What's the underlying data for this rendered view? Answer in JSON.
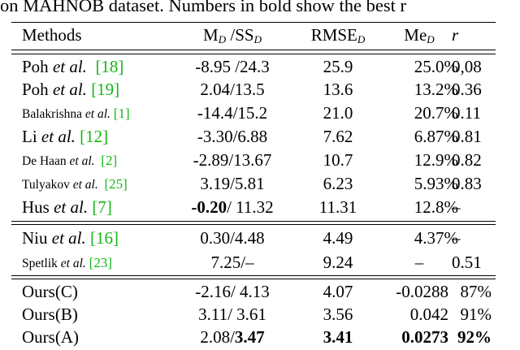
{
  "caption": "on MAHNOB dataset. Numbers in bold show the best r",
  "header": {
    "methods": "Methods",
    "m_sd": "M",
    "m_sd_sub": "D",
    "m_sd_sep": " /SS",
    "m_sd_sub2": "D",
    "rmse": "RMSE",
    "rmse_sub": "D",
    "me": "Me",
    "me_sub": "D",
    "r": "r"
  },
  "rows": [
    {
      "pre": "Poh ",
      "etal": "et al.",
      "ref": "[18]",
      "m": "-8.95 /24.3",
      "rmse": "25.9",
      "me": "25.0%",
      "r": "0,08"
    },
    {
      "pre": "Poh ",
      "etal": "et al.",
      "ref": "[19]",
      "m": "2.04/13.5",
      "rmse": "13.6",
      "me": "13.2%",
      "r": "0.36"
    },
    {
      "pre": "Balakrishna ",
      "etal": "et al.",
      "ref": "[1]",
      "m": "-14.4/15.2",
      "rmse": "21.0",
      "me": "20.7%",
      "r": "0.11"
    },
    {
      "pre": "Li ",
      "etal": "et al.",
      "ref": "[12]",
      "m": "-3.30/6.88",
      "rmse": "7.62",
      "me": "6.87%",
      "r": "0.81"
    },
    {
      "pre": "De Haan ",
      "etal": "et al.",
      "ref": "[2]",
      "m": "-2.89/13.67",
      "rmse": "10.7",
      "me": "12.9%",
      "r": "0.82"
    },
    {
      "pre": "Tulyakov ",
      "etal": "et al.",
      "ref": "[25]",
      "m": "3.19/5.81",
      "rmse": "6.23",
      "me": "5.93%",
      "r": "0.83"
    },
    {
      "pre": "Hus ",
      "etal": "et al.",
      "ref": "[7]",
      "m_bold": "-0.20",
      "m_rest": "/ 11.32",
      "rmse": "11.31",
      "me": "12.8%",
      "r": "–"
    },
    {
      "pre": "Niu ",
      "etal": "et al.",
      "ref": "[16]",
      "m": "0.30/4.48",
      "rmse": "4.49",
      "me": "4.37%",
      "r": "–"
    },
    {
      "pre": "Spetlik ",
      "etal": "et al.",
      "ref": "[23]",
      "m": "7.25/–",
      "rmse": "9.24",
      "me": "–",
      "r": "0.51"
    },
    {
      "name": "Ours(C)",
      "m": "-2.16/ 4.13",
      "rmse": "4.07",
      "me": "-0.0288",
      "r": "87%"
    },
    {
      "name": "Ours(B)",
      "m": "3.11/ 3.61",
      "rmse": "3.56",
      "me": "0.042",
      "r": "91%"
    },
    {
      "name": "Ours(A)",
      "m_rest_first": "2.08/",
      "m_bold_last": "3.47",
      "rmse": "3.41",
      "me": "0.0273",
      "r": "92%"
    }
  ]
}
